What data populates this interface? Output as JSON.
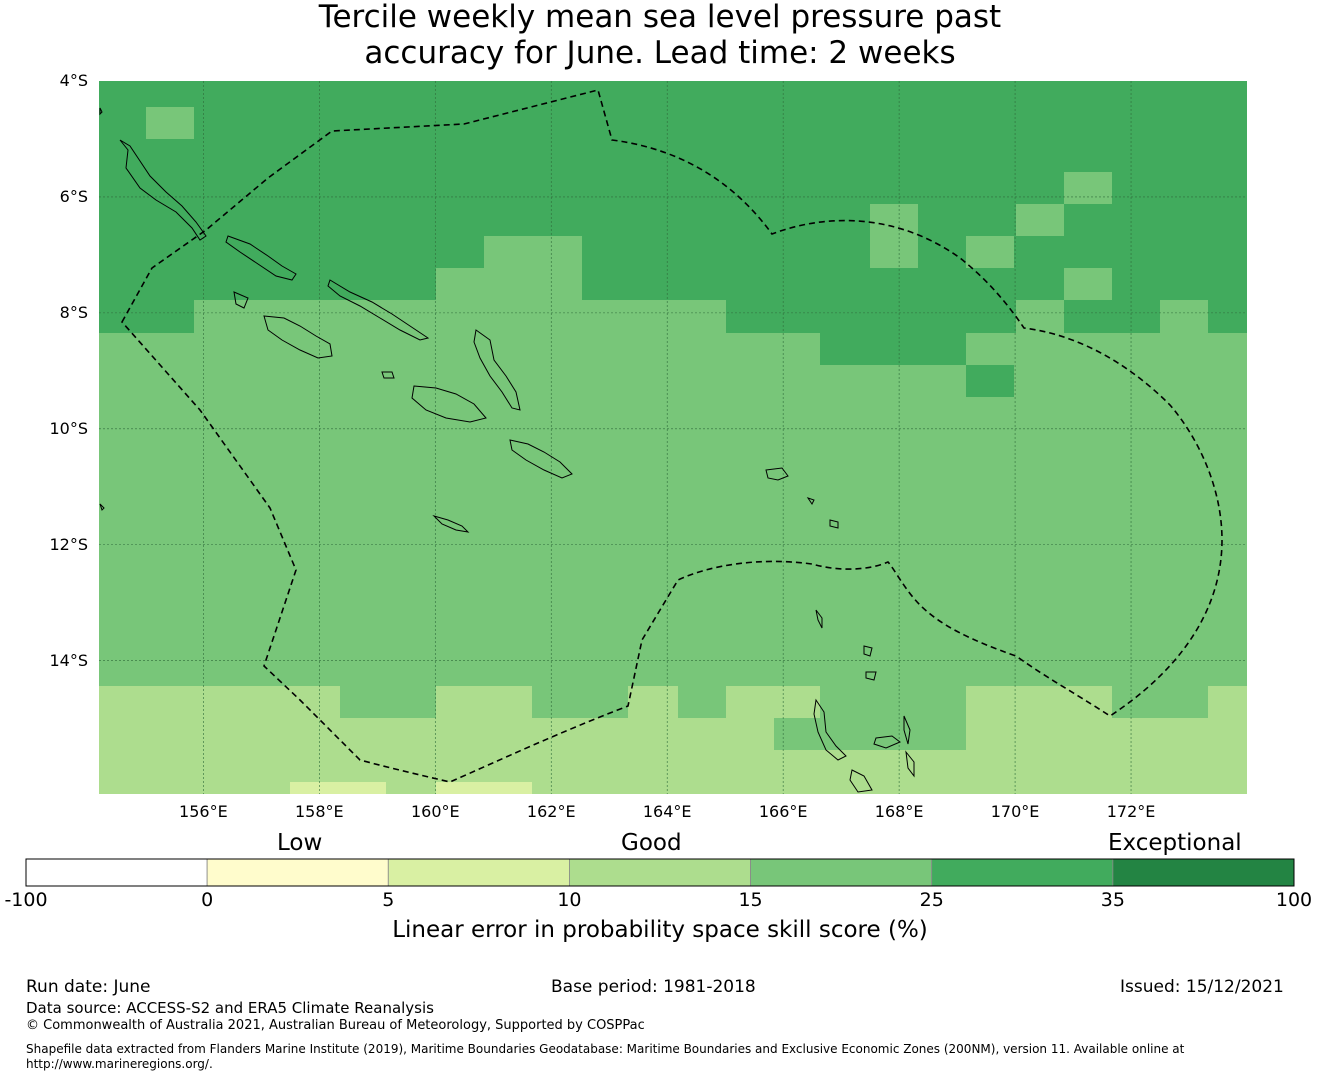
{
  "title_line1": "Tercile weekly mean sea level pressure past",
  "title_line2": "accuracy for June. Lead time: 2 weeks",
  "map": {
    "lon_range": [
      154.2,
      174.0
    ],
    "lat_range": [
      -4.0,
      -16.3
    ],
    "lat_ticks": [
      {
        "value": -4,
        "label": "4°S"
      },
      {
        "value": -6,
        "label": "6°S"
      },
      {
        "value": -8,
        "label": "8°S"
      },
      {
        "value": -10,
        "label": "10°S"
      },
      {
        "value": -12,
        "label": "12°S"
      },
      {
        "value": -14,
        "label": "14°S"
      }
    ],
    "lon_ticks": [
      {
        "value": 156,
        "label": "156°E"
      },
      {
        "value": 158,
        "label": "158°E"
      },
      {
        "value": 160,
        "label": "160°E"
      },
      {
        "value": 162,
        "label": "162°E"
      },
      {
        "value": 164,
        "label": "164°E"
      },
      {
        "value": 166,
        "label": "166°E"
      },
      {
        "value": 168,
        "label": "168°E"
      },
      {
        "value": 170,
        "label": "170°E"
      },
      {
        "value": 172,
        "label": "172°E"
      }
    ],
    "grid": true,
    "boundary": "dashed exclusive economic zone outline (Solomon Islands)"
  },
  "legend": {
    "categories": [
      "Low",
      "Good",
      "Exceptional"
    ],
    "ticks": [
      "-100",
      "0",
      "5",
      "10",
      "15",
      "25",
      "35",
      "100"
    ],
    "colors": [
      "#ffffff",
      "#fffccc",
      "#d9f0a3",
      "#addd8e",
      "#78c679",
      "#41ab5d",
      "#238443"
    ],
    "title": "Linear error in probability space skill score (%)"
  },
  "footer": {
    "run_date": "Run date: June",
    "base_period": "Base period: 1981-2018",
    "issued": "Issued: 15/12/2021",
    "data_source": "Data source: ACCESS-S2 and ERA5 Climate Reanalysis",
    "copyright": "© Commonwealth of Australia 2021, Australian Bureau of Meteorology, Supported by COSPPac",
    "shapefile_line1": "Shapefile data extracted from Flanders Marine Institute (2019), Maritime Boundaries Geodatabase: Maritime Boundaries and Exclusive Economic Zones (200NM), version 11. Available online at",
    "shapefile_line2": "http://www.marineregions.org/."
  }
}
